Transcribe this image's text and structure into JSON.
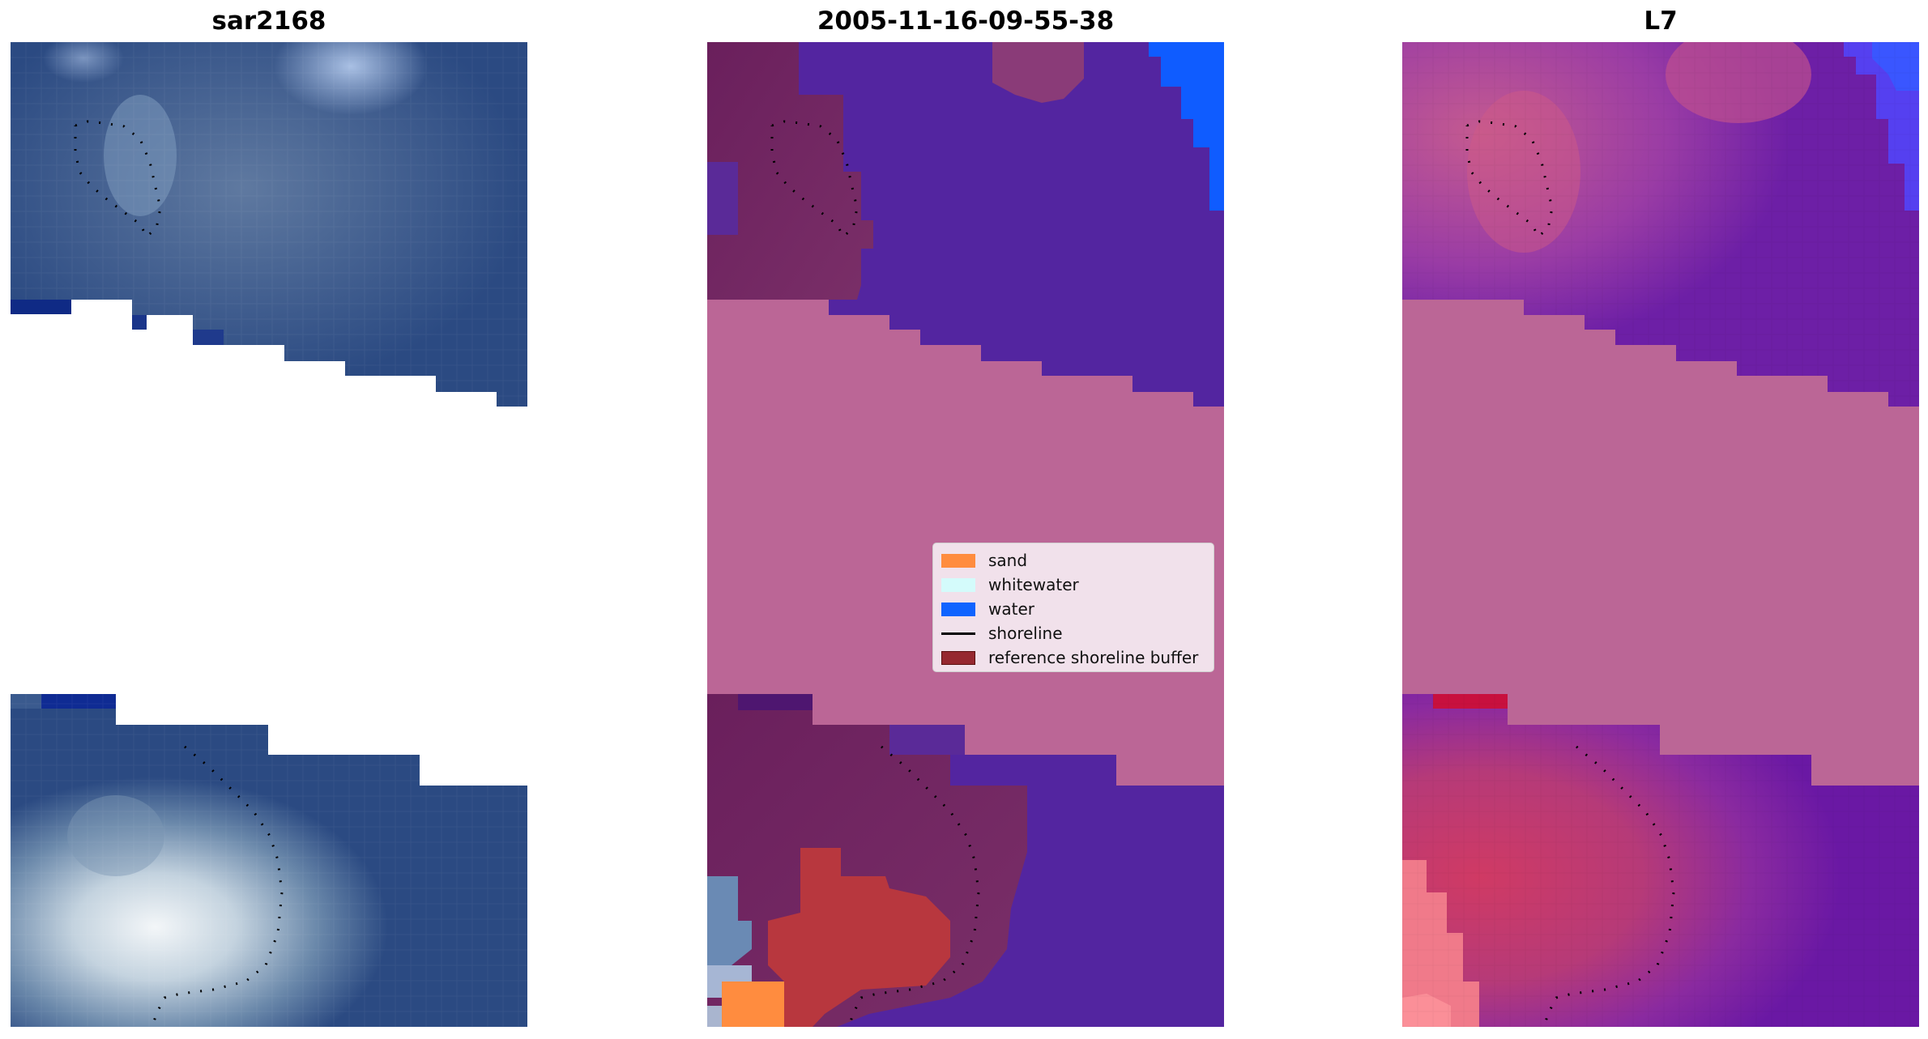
{
  "panels": {
    "left": {
      "title": "sar2168"
    },
    "middle": {
      "title": "2005-11-16-09-55-38"
    },
    "right": {
      "title": "L7"
    }
  },
  "legend": {
    "items": [
      {
        "label": "sand",
        "color": "#ff8c3f",
        "kind": "patch"
      },
      {
        "label": "whitewater",
        "color": "#d4fbfb",
        "kind": "patch"
      },
      {
        "label": "water",
        "color": "#1064ff",
        "kind": "patch"
      },
      {
        "label": "shoreline",
        "color": "#000000",
        "kind": "line"
      },
      {
        "label": "reference shoreline buffer",
        "color": "#962830",
        "kind": "patch"
      }
    ]
  },
  "colors": {
    "rgb_ocean": "#2a4880",
    "class_water_overlay": "#5325a0",
    "class_buffer_land": "#bb6696",
    "class_reference_dark": "#6a1f5c",
    "nir_purple": "#7a2ba8",
    "nir_pink": "#c04a78"
  }
}
